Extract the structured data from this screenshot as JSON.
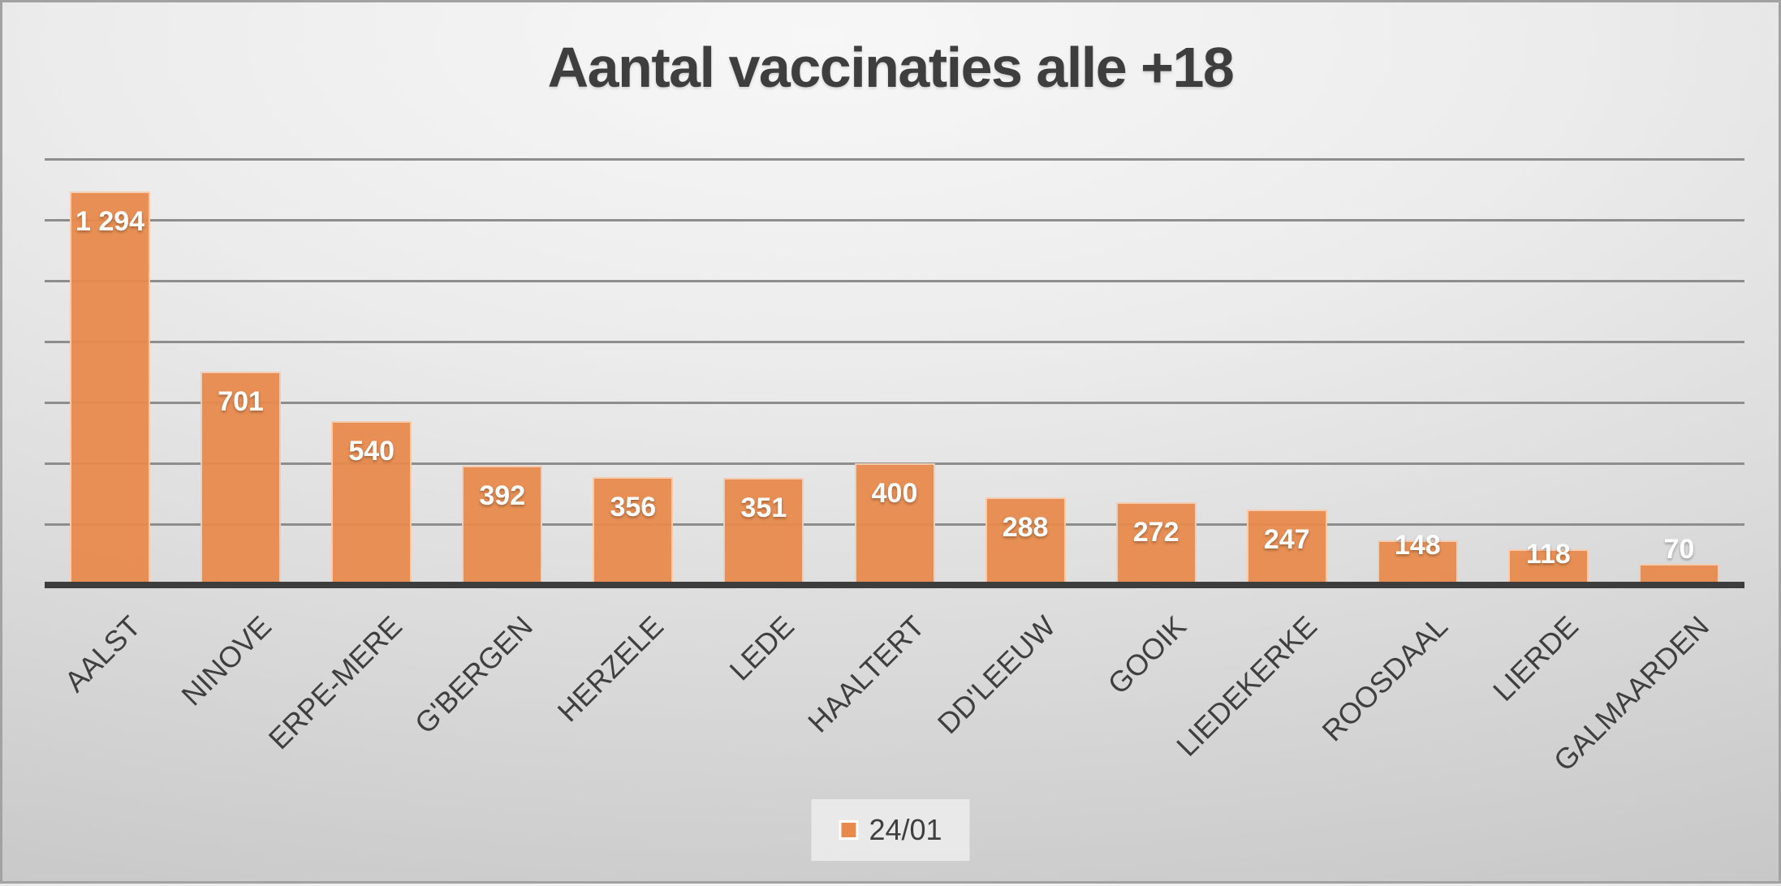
{
  "chart_data": {
    "type": "bar",
    "title": "Aantal vaccinaties alle +18",
    "categories": [
      "AALST",
      "NINOVE",
      "ERPE-MERE",
      "G'BERGEN",
      "HERZELE",
      "LEDE",
      "HAALTERT",
      "DD'LEEUW",
      "GOOIK",
      "LIEDEKERKE",
      "ROOSDAAL",
      "LIERDE",
      "GALMAARDEN"
    ],
    "series": [
      {
        "name": "24/01",
        "values": [
          1294,
          701,
          540,
          392,
          356,
          351,
          400,
          288,
          272,
          247,
          148,
          118,
          70
        ]
      }
    ],
    "data_labels": [
      "1 294",
      "701",
      "540",
      "392",
      "356",
      "351",
      "400",
      "288",
      "272",
      "247",
      "148",
      "118",
      "70"
    ],
    "xlabel": "",
    "ylabel": "",
    "ylim": [
      0,
      1400
    ],
    "gridline_step": 200,
    "grid": true,
    "y_axis_labels_visible": false,
    "legend_position": "bottom",
    "colors": {
      "bar": "#E78A4C",
      "gridline": "#8D8D8D",
      "axis_line": "#3D3D3D",
      "data_label": "#FFFFFF",
      "text": "#3F3F3F",
      "title": "#3E3E3E"
    }
  },
  "legend": {
    "label": "24/01",
    "swatch_color": "#E78A4C"
  }
}
